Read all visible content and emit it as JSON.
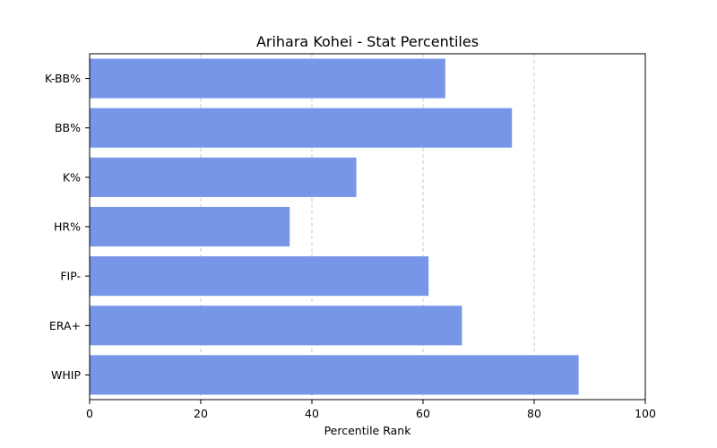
{
  "chart_data": {
    "type": "bar",
    "orientation": "horizontal",
    "title": "Arihara Kohei - Stat Percentiles",
    "xlabel": "Percentile Rank",
    "ylabel": "",
    "xlim": [
      0,
      100
    ],
    "xticks": [
      0,
      20,
      40,
      60,
      80,
      100
    ],
    "grid": "x-dashed",
    "categories": [
      "K-BB%",
      "BB%",
      "K%",
      "HR%",
      "FIP-",
      "ERA+",
      "WHIP"
    ],
    "values": [
      64,
      76,
      48,
      36,
      61,
      67,
      88
    ],
    "bar_color": "#7896e8",
    "grid_color": "#c8c8c8"
  }
}
